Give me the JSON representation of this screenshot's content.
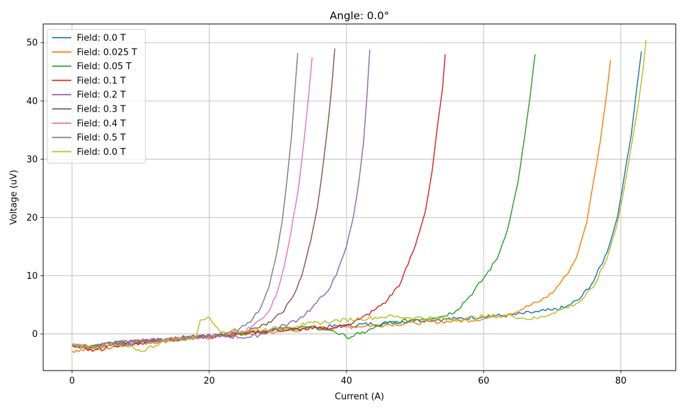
{
  "chart_data": {
    "type": "line",
    "title": "Angle: 0.0°",
    "xlabel": "Current (A)",
    "ylabel": "Voltage (uV)",
    "xlim": [
      -4.2,
      88
    ],
    "ylim": [
      -6.3,
      53.2
    ],
    "xticks": [
      0,
      20,
      40,
      60,
      80
    ],
    "yticks": [
      0,
      10,
      20,
      30,
      40,
      50
    ],
    "grid": true,
    "legend_position": "top-left",
    "series": [
      {
        "name": "Field: 0.0 T",
        "color": "#1f77b4",
        "x": [
          0,
          3,
          6,
          10,
          14,
          18,
          22,
          26,
          30,
          34,
          40,
          46,
          50,
          56,
          60,
          64,
          68,
          70,
          72,
          74,
          76,
          78,
          79.5,
          80.5,
          81.5,
          82.3,
          83
        ],
        "y": [
          -2,
          -2.4,
          -1.8,
          -1.4,
          -1,
          -0.6,
          -0.2,
          0.3,
          0.7,
          1,
          1.4,
          1.9,
          2.3,
          2.6,
          3,
          3.2,
          3.8,
          4.1,
          4.6,
          6,
          9,
          14,
          20,
          27,
          34,
          42,
          48.5
        ]
      },
      {
        "name": "Field: 0.025 T",
        "color": "#ff7f0e",
        "x": [
          0,
          3,
          6,
          10,
          14,
          18,
          22,
          26,
          30,
          34,
          40,
          46,
          50,
          56,
          60,
          64,
          68,
          70,
          72,
          73.5,
          75,
          76,
          77,
          77.8,
          78.5
        ],
        "y": [
          -3,
          -2.6,
          -2.2,
          -1.6,
          -1.2,
          -0.8,
          -0.4,
          0,
          0.4,
          0.8,
          1.2,
          1.6,
          1.9,
          2.2,
          2.6,
          3.5,
          5.5,
          7,
          10,
          13,
          19,
          26,
          33,
          40,
          47
        ]
      },
      {
        "name": "Field: 0.05 T",
        "color": "#2ca02c",
        "x": [
          0,
          3,
          6,
          10,
          14,
          18,
          22,
          26,
          30,
          34,
          38,
          40,
          42,
          44,
          46,
          50,
          54,
          56,
          58,
          60,
          62,
          63.5,
          65,
          66,
          66.8,
          67.5
        ],
        "y": [
          -2,
          -2,
          -1.6,
          -1.2,
          -0.8,
          -0.5,
          -0.2,
          0.3,
          0.8,
          1.2,
          0.6,
          -0.6,
          0,
          1,
          1.8,
          2.5,
          3,
          4,
          6.5,
          9.5,
          13,
          18,
          26,
          34,
          41,
          48
        ]
      },
      {
        "name": "Field: 0.1 T",
        "color": "#d62728",
        "x": [
          0,
          3,
          6,
          10,
          14,
          18,
          22,
          26,
          30,
          34,
          38,
          40,
          42,
          44,
          46,
          48,
          50,
          51.5,
          52.5,
          53.3,
          54,
          54.4
        ],
        "y": [
          -2,
          -3,
          -2,
          -1.6,
          -1,
          -0.6,
          -0.2,
          0.3,
          0.6,
          0.8,
          1,
          1.6,
          2.5,
          4,
          5.8,
          9,
          15,
          21,
          28,
          36,
          42,
          48
        ]
      },
      {
        "name": "Field: 0.2 T",
        "color": "#9467bd",
        "x": [
          0,
          3,
          6,
          10,
          14,
          18,
          22,
          26,
          29,
          31,
          33,
          35,
          37,
          38.5,
          40,
          41,
          41.8,
          42.5,
          43,
          43.4
        ],
        "y": [
          -2,
          -2.2,
          -1.7,
          -1.3,
          -0.9,
          -0.6,
          -0.4,
          -0.6,
          0.5,
          1.5,
          2.5,
          4.5,
          7,
          10,
          15,
          20,
          26,
          33,
          41,
          48.8
        ]
      },
      {
        "name": "Field: 0.3 T",
        "color": "#8c564b",
        "x": [
          0,
          3,
          6,
          10,
          14,
          18,
          22,
          25,
          27,
          29,
          30.5,
          32,
          33.5,
          34.8,
          35.8,
          36.6,
          37.3,
          37.9,
          38.3
        ],
        "y": [
          -2,
          -2.2,
          -1.6,
          -1.2,
          -0.9,
          -0.5,
          -0.3,
          0.3,
          1,
          2,
          3.5,
          6,
          10,
          16,
          22,
          29,
          36,
          43,
          49
        ]
      },
      {
        "name": "Field: 0.4 T",
        "color": "#e377c2",
        "x": [
          0,
          3,
          6,
          10,
          14,
          18,
          22,
          24,
          26,
          27.5,
          29,
          30,
          31,
          32,
          33,
          33.8,
          34.5,
          35
        ],
        "y": [
          -2,
          -2.2,
          -1.6,
          -1.2,
          -0.9,
          -0.6,
          -0.4,
          0.2,
          1,
          2.5,
          4.5,
          7.5,
          12,
          18,
          25,
          33,
          41,
          47.5
        ]
      },
      {
        "name": "Field: 0.5 T",
        "color": "#7f7f7f",
        "x": [
          0,
          3,
          6,
          10,
          14,
          18,
          21,
          23,
          24.5,
          26,
          27.5,
          28.7,
          29.7,
          30.6,
          31.3,
          32,
          32.5,
          32.9
        ],
        "y": [
          -2,
          -2.2,
          -1.6,
          -1.2,
          -1,
          -0.6,
          -0.3,
          0.3,
          1,
          2,
          4.5,
          8,
          13,
          19,
          26,
          34,
          42,
          48.2
        ]
      },
      {
        "name": "Field: 0.0 T",
        "color": "#bcbd22",
        "x": [
          0,
          3,
          6,
          9,
          10,
          14,
          18,
          18.7,
          19.8,
          20.8,
          22,
          26,
          30,
          34,
          38,
          42,
          46,
          50,
          56,
          60,
          64,
          66,
          68,
          70,
          72,
          74,
          76,
          78,
          79.5,
          80.5,
          81.5,
          82.5,
          83.2,
          83.7
        ],
        "y": [
          -1.8,
          -2.2,
          -2,
          -2.4,
          -3,
          -1,
          -0.8,
          2.4,
          2.9,
          1.5,
          0.3,
          0.5,
          1,
          1.6,
          2.2,
          2.6,
          3,
          2.8,
          2.5,
          3,
          3.2,
          2.6,
          2.7,
          3.6,
          4.5,
          5.5,
          8,
          13,
          19,
          25,
          32,
          39,
          45,
          50.5
        ]
      }
    ]
  }
}
